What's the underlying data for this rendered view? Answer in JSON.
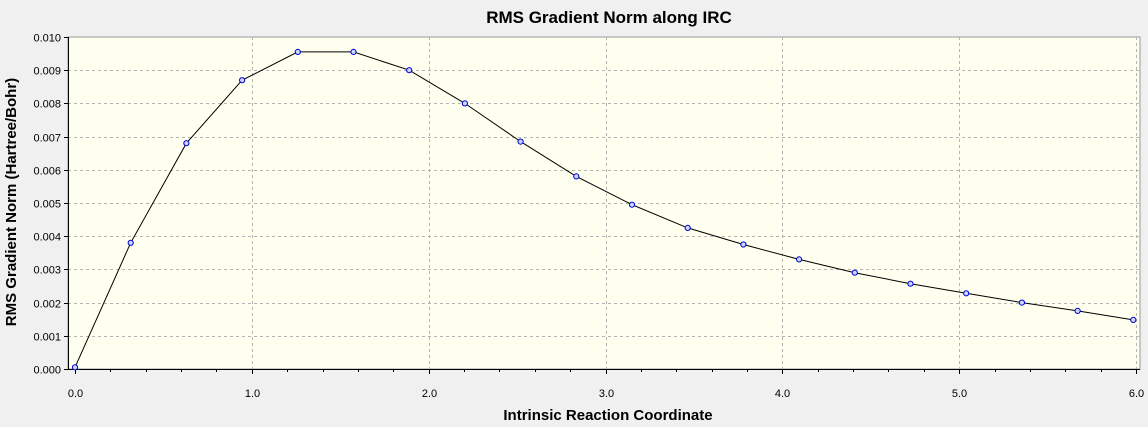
{
  "chart_data": {
    "type": "line",
    "title": "RMS Gradient Norm along IRC",
    "xlabel": "Intrinsic Reaction Coordinate",
    "ylabel": "RMS Gradient Norm (Hartree/Bohr)",
    "xlim": [
      0.0,
      6.0
    ],
    "ylim": [
      0.0,
      0.01
    ],
    "x_ticks": [
      "0.0",
      "1.0",
      "2.0",
      "3.0",
      "4.0",
      "5.0",
      "6.0"
    ],
    "y_ticks": [
      "0.000",
      "0.001",
      "0.002",
      "0.003",
      "0.004",
      "0.005",
      "0.006",
      "0.007",
      "0.008",
      "0.009",
      "0.010"
    ],
    "grid": true,
    "colors": {
      "line": "#000000",
      "marker_fill": "#c8d7ff",
      "marker_stroke": "#0000cc",
      "plot_bg": "#fffff0",
      "grid": "#b4b4b4"
    },
    "x": [
      0.0,
      0.315,
      0.63,
      0.945,
      1.26,
      1.575,
      1.89,
      2.205,
      2.52,
      2.835,
      3.15,
      3.465,
      3.78,
      4.095,
      4.41,
      4.725,
      5.04,
      5.355,
      5.67,
      5.985
    ],
    "y": [
      5e-05,
      0.0038,
      0.0068,
      0.0087,
      0.00955,
      0.00955,
      0.009,
      0.008,
      0.00685,
      0.0058,
      0.00495,
      0.00425,
      0.00375,
      0.0033,
      0.0029,
      0.00257,
      0.00228,
      0.002,
      0.00175,
      0.00148
    ]
  }
}
